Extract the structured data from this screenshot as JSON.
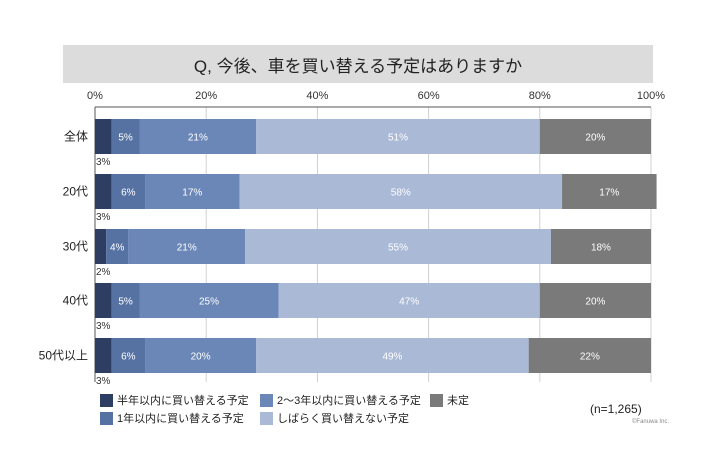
{
  "title": "Q, 今後、車を買い替える予定はありますか",
  "n_label": "(n=1,265)",
  "credit": "©Fanuwa Inc.",
  "colors": {
    "half_year": "#2e3e62",
    "one_year": "#5672a3",
    "two_three_year": "#6a87b8",
    "not_for_while": "#a9b9d6",
    "undecided": "#7a7a7a"
  },
  "legend": [
    {
      "label": "半年以内に買い替える予定",
      "key": "half_year"
    },
    {
      "label": "2～3年以内に買い替える予定",
      "key": "two_three_year"
    },
    {
      "label": "未定",
      "key": "undecided"
    },
    {
      "label": "1年以内に買い替える予定",
      "key": "one_year"
    },
    {
      "label": "しばらく買い替えない予定",
      "key": "not_for_while"
    }
  ],
  "chart_data": {
    "type": "bar",
    "orientation": "horizontal",
    "stacked": true,
    "title": "Q, 今後、車を買い替える予定はありますか",
    "categories": [
      "全体",
      "20代",
      "30代",
      "40代",
      "50代以上"
    ],
    "x_ticks": [
      "0%",
      "20%",
      "40%",
      "60%",
      "80%",
      "100%"
    ],
    "xlim": [
      0,
      100
    ],
    "series": [
      {
        "name": "半年以内に買い替える予定",
        "key": "half_year",
        "values": [
          3,
          3,
          2,
          3,
          3
        ],
        "labels": [
          "3%",
          "3%",
          "2%",
          "3%",
          "3%"
        ]
      },
      {
        "name": "1年以内に買い替える予定",
        "key": "one_year",
        "values": [
          5,
          6,
          4,
          5,
          6
        ],
        "labels": [
          "5%",
          "6%",
          "4%",
          "5%",
          "6%"
        ]
      },
      {
        "name": "2～3年以内に買い替える予定",
        "key": "two_three_year",
        "values": [
          21,
          17,
          21,
          25,
          20
        ],
        "labels": [
          "21%",
          "17%",
          "21%",
          "25%",
          "20%"
        ]
      },
      {
        "name": "しばらく買い替えない予定",
        "key": "not_for_while",
        "values": [
          51,
          58,
          55,
          47,
          49
        ],
        "labels": [
          "51%",
          "58%",
          "55%",
          "47%",
          "49%"
        ]
      },
      {
        "name": "未定",
        "key": "undecided",
        "values": [
          20,
          17,
          18,
          20,
          22
        ],
        "labels": [
          "20%",
          "17%",
          "18%",
          "20%",
          "22%"
        ]
      }
    ],
    "grid": true,
    "legend_position": "bottom"
  }
}
